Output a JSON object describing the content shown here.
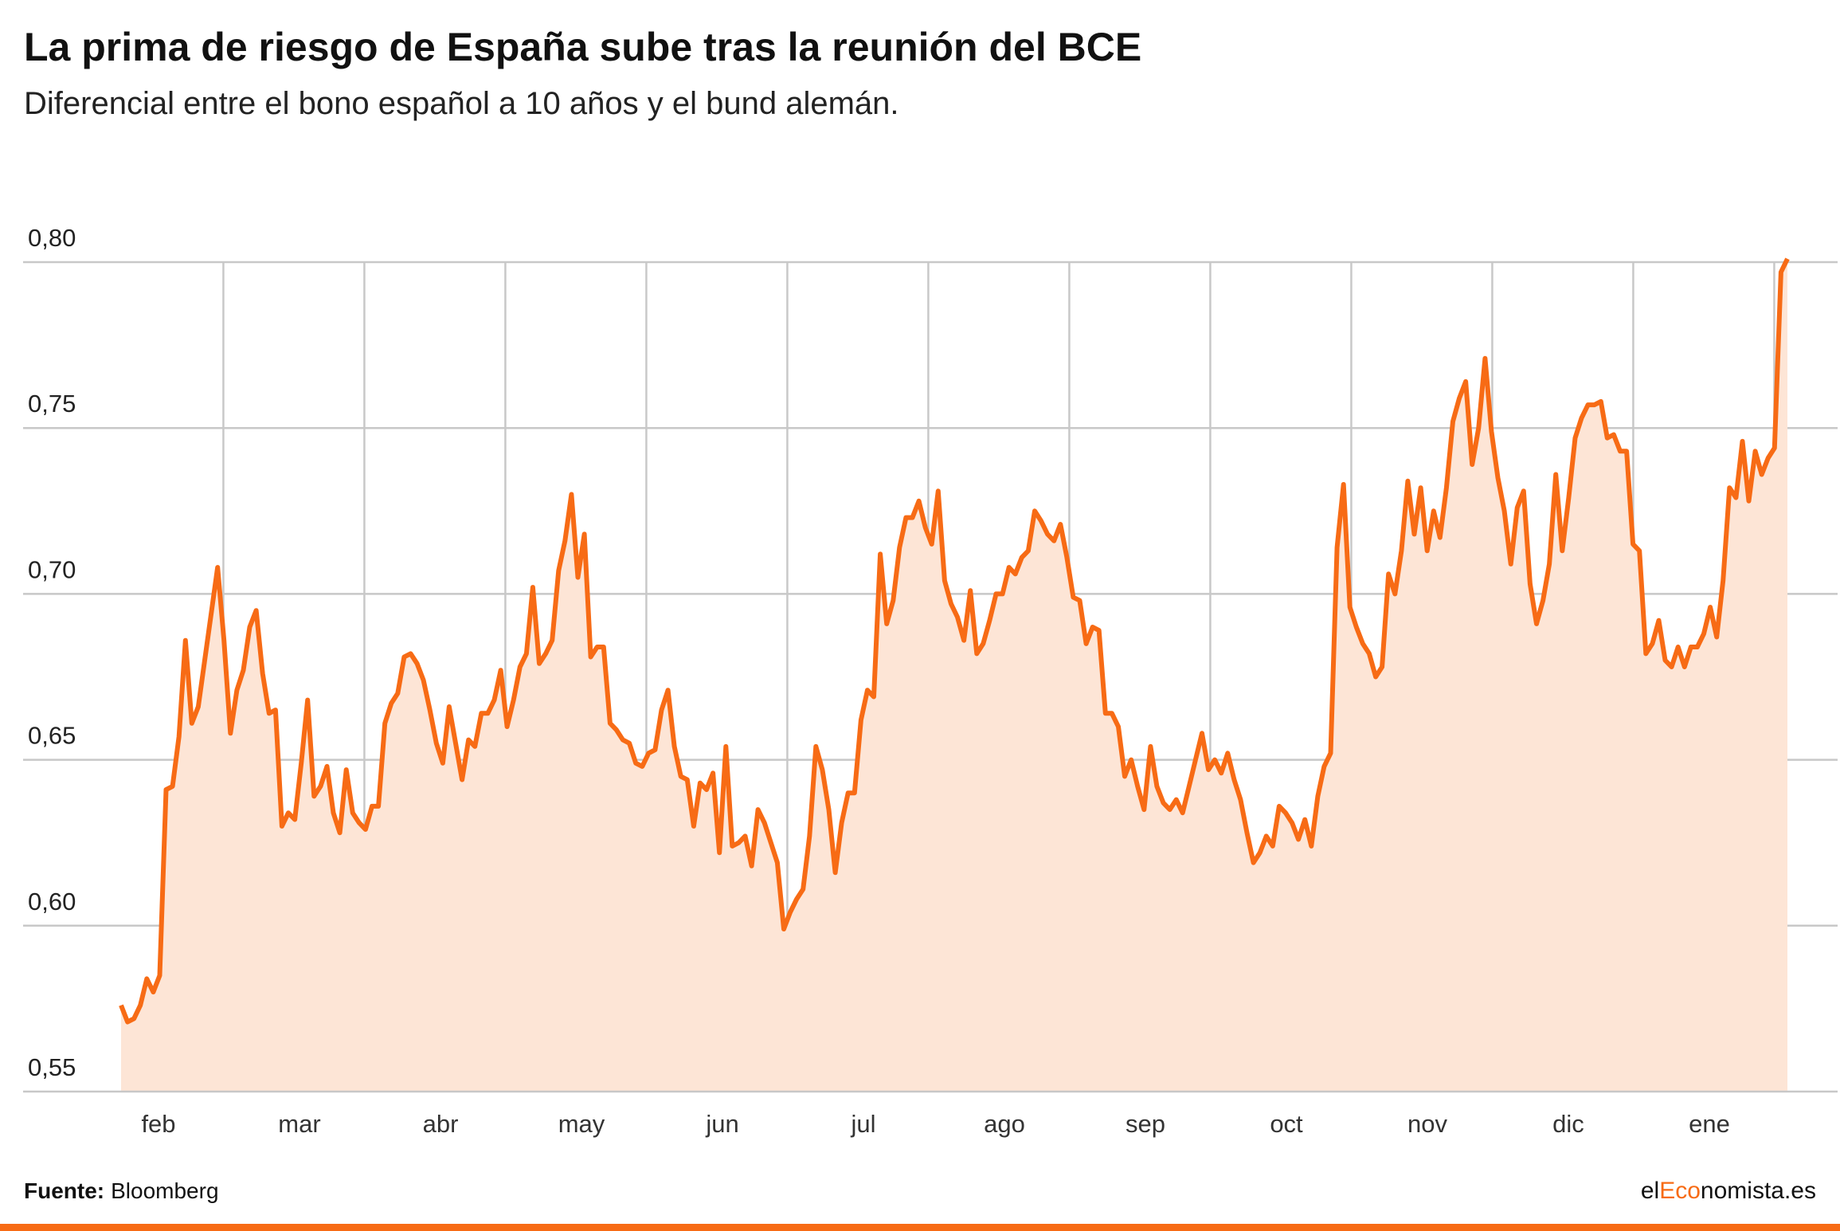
{
  "chart_data": {
    "type": "area",
    "title": "La prima de riesgo de España sube tras la reunión del BCE",
    "subtitle": "Diferencial entre el bono español a 10 años y el bund alemán.",
    "x_labels": [
      "feb",
      "mar",
      "abr",
      "may",
      "jun",
      "jul",
      "ago",
      "sep",
      "oct",
      "nov",
      "dic",
      "ene"
    ],
    "series": [
      {
        "color": "#f76b15",
        "fill": "#fde5d6",
        "values": [
          0.576,
          0.571,
          0.572,
          0.576,
          0.584,
          0.58,
          0.585,
          0.641,
          0.642,
          0.657,
          0.686,
          0.661,
          0.666,
          0.68,
          0.694,
          0.708,
          0.686,
          0.658,
          0.671,
          0.677,
          0.69,
          0.695,
          0.676,
          0.664,
          0.665,
          0.63,
          0.634,
          0.632,
          0.649,
          0.668,
          0.639,
          0.642,
          0.648,
          0.634,
          0.628,
          0.647,
          0.634,
          0.631,
          0.629,
          0.636,
          0.636,
          0.661,
          0.667,
          0.67,
          0.681,
          0.682,
          0.679,
          0.674,
          0.665,
          0.655,
          0.649,
          0.666,
          0.655,
          0.644,
          0.656,
          0.654,
          0.664,
          0.664,
          0.668,
          0.677,
          0.66,
          0.668,
          0.678,
          0.682,
          0.702,
          0.679,
          0.682,
          0.686,
          0.707,
          0.716,
          0.73,
          0.705,
          0.718,
          0.681,
          0.684,
          0.684,
          0.661,
          0.659,
          0.656,
          0.655,
          0.649,
          0.648,
          0.652,
          0.653,
          0.665,
          0.671,
          0.654,
          0.645,
          0.644,
          0.63,
          0.643,
          0.641,
          0.646,
          0.622,
          0.654,
          0.624,
          0.625,
          0.627,
          0.618,
          0.635,
          0.631,
          0.625,
          0.619,
          0.599,
          0.604,
          0.608,
          0.611,
          0.627,
          0.654,
          0.647,
          0.635,
          0.616,
          0.631,
          0.64,
          0.64,
          0.662,
          0.671,
          0.669,
          0.712,
          0.691,
          0.698,
          0.714,
          0.723,
          0.723,
          0.728,
          0.72,
          0.715,
          0.731,
          0.704,
          0.697,
          0.693,
          0.686,
          0.701,
          0.682,
          0.685,
          0.692,
          0.7,
          0.7,
          0.708,
          0.706,
          0.711,
          0.713,
          0.725,
          0.722,
          0.718,
          0.716,
          0.721,
          0.711,
          0.699,
          0.698,
          0.685,
          0.69,
          0.689,
          0.664,
          0.664,
          0.66,
          0.645,
          0.65,
          0.642,
          0.635,
          0.654,
          0.642,
          0.637,
          0.635,
          0.638,
          0.634,
          0.642,
          0.65,
          0.658,
          0.647,
          0.65,
          0.646,
          0.652,
          0.644,
          0.638,
          0.628,
          0.619,
          0.622,
          0.627,
          0.624,
          0.636,
          0.634,
          0.631,
          0.626,
          0.632,
          0.624,
          0.639,
          0.648,
          0.652,
          0.714,
          0.733,
          0.696,
          0.69,
          0.685,
          0.682,
          0.675,
          0.678,
          0.706,
          0.7,
          0.713,
          0.734,
          0.718,
          0.732,
          0.713,
          0.725,
          0.717,
          0.732,
          0.752,
          0.759,
          0.764,
          0.739,
          0.75,
          0.771,
          0.749,
          0.735,
          0.725,
          0.709,
          0.726,
          0.731,
          0.703,
          0.691,
          0.698,
          0.709,
          0.736,
          0.713,
          0.729,
          0.747,
          0.753,
          0.757,
          0.757,
          0.758,
          0.747,
          0.748,
          0.743,
          0.743,
          0.715,
          0.713,
          0.682,
          0.685,
          0.692,
          0.68,
          0.678,
          0.684,
          0.678,
          0.684,
          0.684,
          0.688,
          0.696,
          0.687,
          0.704,
          0.732,
          0.729,
          0.746,
          0.728,
          0.743,
          0.736,
          0.741,
          0.744,
          0.797,
          0.801
        ]
      }
    ],
    "ylim": [
      0.55,
      0.8
    ],
    "yticks": [
      {
        "value": 0.55,
        "label": "0,55"
      },
      {
        "value": 0.6,
        "label": "0,60"
      },
      {
        "value": 0.65,
        "label": "0,65"
      },
      {
        "value": 0.7,
        "label": "0,70"
      },
      {
        "value": 0.75,
        "label": "0,75"
      },
      {
        "value": 0.8,
        "label": "0,80"
      }
    ],
    "grid": true,
    "source_label": "Fuente:",
    "source": "Bloomberg",
    "brand": [
      "el",
      "Eco",
      "nomista.es"
    ]
  }
}
